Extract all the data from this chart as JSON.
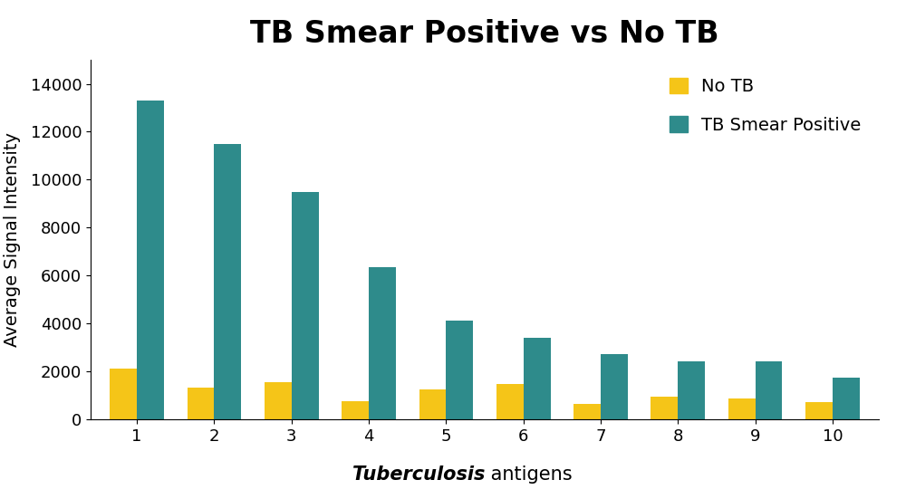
{
  "title": "TB Smear Positive vs No TB",
  "ylabel": "Average Signal Intensity",
  "categories": [
    "1",
    "2",
    "3",
    "4",
    "5",
    "6",
    "7",
    "8",
    "9",
    "10"
  ],
  "no_tb": [
    2100,
    1300,
    1550,
    750,
    1250,
    1450,
    650,
    950,
    850,
    700
  ],
  "tb_smear_positive": [
    13300,
    11500,
    9500,
    6350,
    4100,
    3400,
    2700,
    2400,
    2400,
    1750
  ],
  "no_tb_color": "#F5C518",
  "tb_smear_color": "#2E8B8B",
  "ylim": [
    0,
    15000
  ],
  "yticks": [
    0,
    2000,
    4000,
    6000,
    8000,
    10000,
    12000,
    14000
  ],
  "bar_width": 0.35,
  "title_fontsize": 24,
  "axis_label_fontsize": 14,
  "tick_fontsize": 13,
  "legend_fontsize": 14,
  "bg_color": "#FFFFFF"
}
